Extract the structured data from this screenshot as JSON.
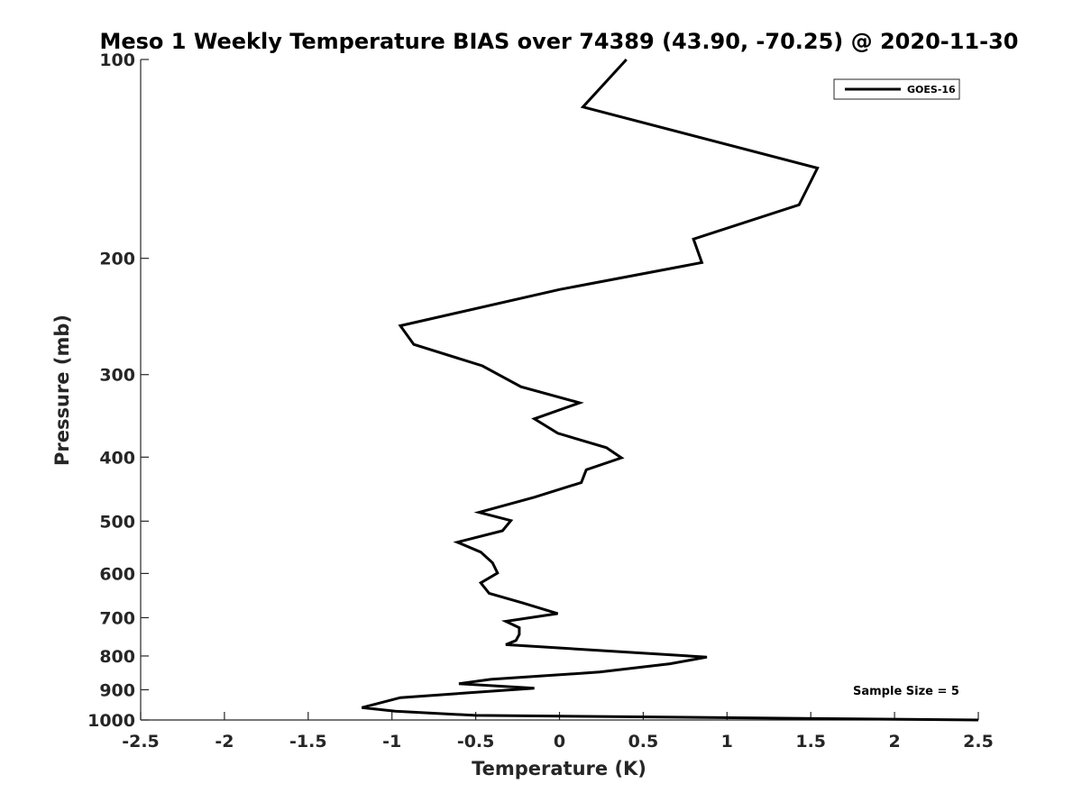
{
  "chart_data": {
    "type": "line",
    "title": "Meso 1 Weekly Temperature BIAS over 74389 (43.90, -70.25) @ 2020-11-30",
    "xlabel": "Temperature (K)",
    "ylabel": "Pressure (mb)",
    "xlim": [
      -2.5,
      2.5
    ],
    "ylim": [
      100,
      1000
    ],
    "y_scale": "log",
    "y_reversed": true,
    "x_ticks": [
      "-2.5",
      "-2",
      "-1.5",
      "-1",
      "-0.5",
      "0",
      "0.5",
      "1",
      "1.5",
      "2",
      "2.5"
    ],
    "y_ticks": [
      "100",
      "200",
      "300",
      "400",
      "500",
      "600",
      "700",
      "800",
      "900",
      "1000"
    ],
    "grid": false,
    "legend": {
      "position": "top-right",
      "entries": [
        "GOES-16"
      ]
    },
    "annotation": "Sample Size = 5",
    "series": [
      {
        "name": "GOES-16",
        "color": "#000000",
        "points": [
          [
            0.4,
            100
          ],
          [
            0.14,
            118
          ],
          [
            1.54,
            146
          ],
          [
            1.43,
            166
          ],
          [
            0.8,
            187
          ],
          [
            0.85,
            203
          ],
          [
            0.0,
            223
          ],
          [
            -0.95,
            253
          ],
          [
            -0.87,
            270
          ],
          [
            -0.46,
            291
          ],
          [
            -0.23,
            313
          ],
          [
            0.12,
            331
          ],
          [
            -0.15,
            350
          ],
          [
            -0.01,
            368
          ],
          [
            0.28,
            387
          ],
          [
            0.37,
            401
          ],
          [
            0.16,
            418
          ],
          [
            0.13,
            437
          ],
          [
            -0.15,
            460
          ],
          [
            -0.48,
            485
          ],
          [
            -0.29,
            499
          ],
          [
            -0.34,
            517
          ],
          [
            -0.61,
            538
          ],
          [
            -0.47,
            557
          ],
          [
            -0.4,
            578
          ],
          [
            -0.37,
            599
          ],
          [
            -0.47,
            620
          ],
          [
            -0.42,
            643
          ],
          [
            -0.22,
            665
          ],
          [
            -0.01,
            690
          ],
          [
            -0.32,
            709
          ],
          [
            -0.24,
            725
          ],
          [
            -0.24,
            742
          ],
          [
            -0.26,
            758
          ],
          [
            -0.32,
            769
          ],
          [
            0.88,
            803
          ],
          [
            0.66,
            822
          ],
          [
            0.24,
            846
          ],
          [
            -0.41,
            868
          ],
          [
            -0.6,
            881
          ],
          [
            -0.15,
            895
          ],
          [
            -0.95,
            925
          ],
          [
            -1.18,
            958
          ],
          [
            -0.98,
            970
          ],
          [
            -0.5,
            984
          ],
          [
            2.5,
            1000
          ]
        ]
      }
    ]
  }
}
